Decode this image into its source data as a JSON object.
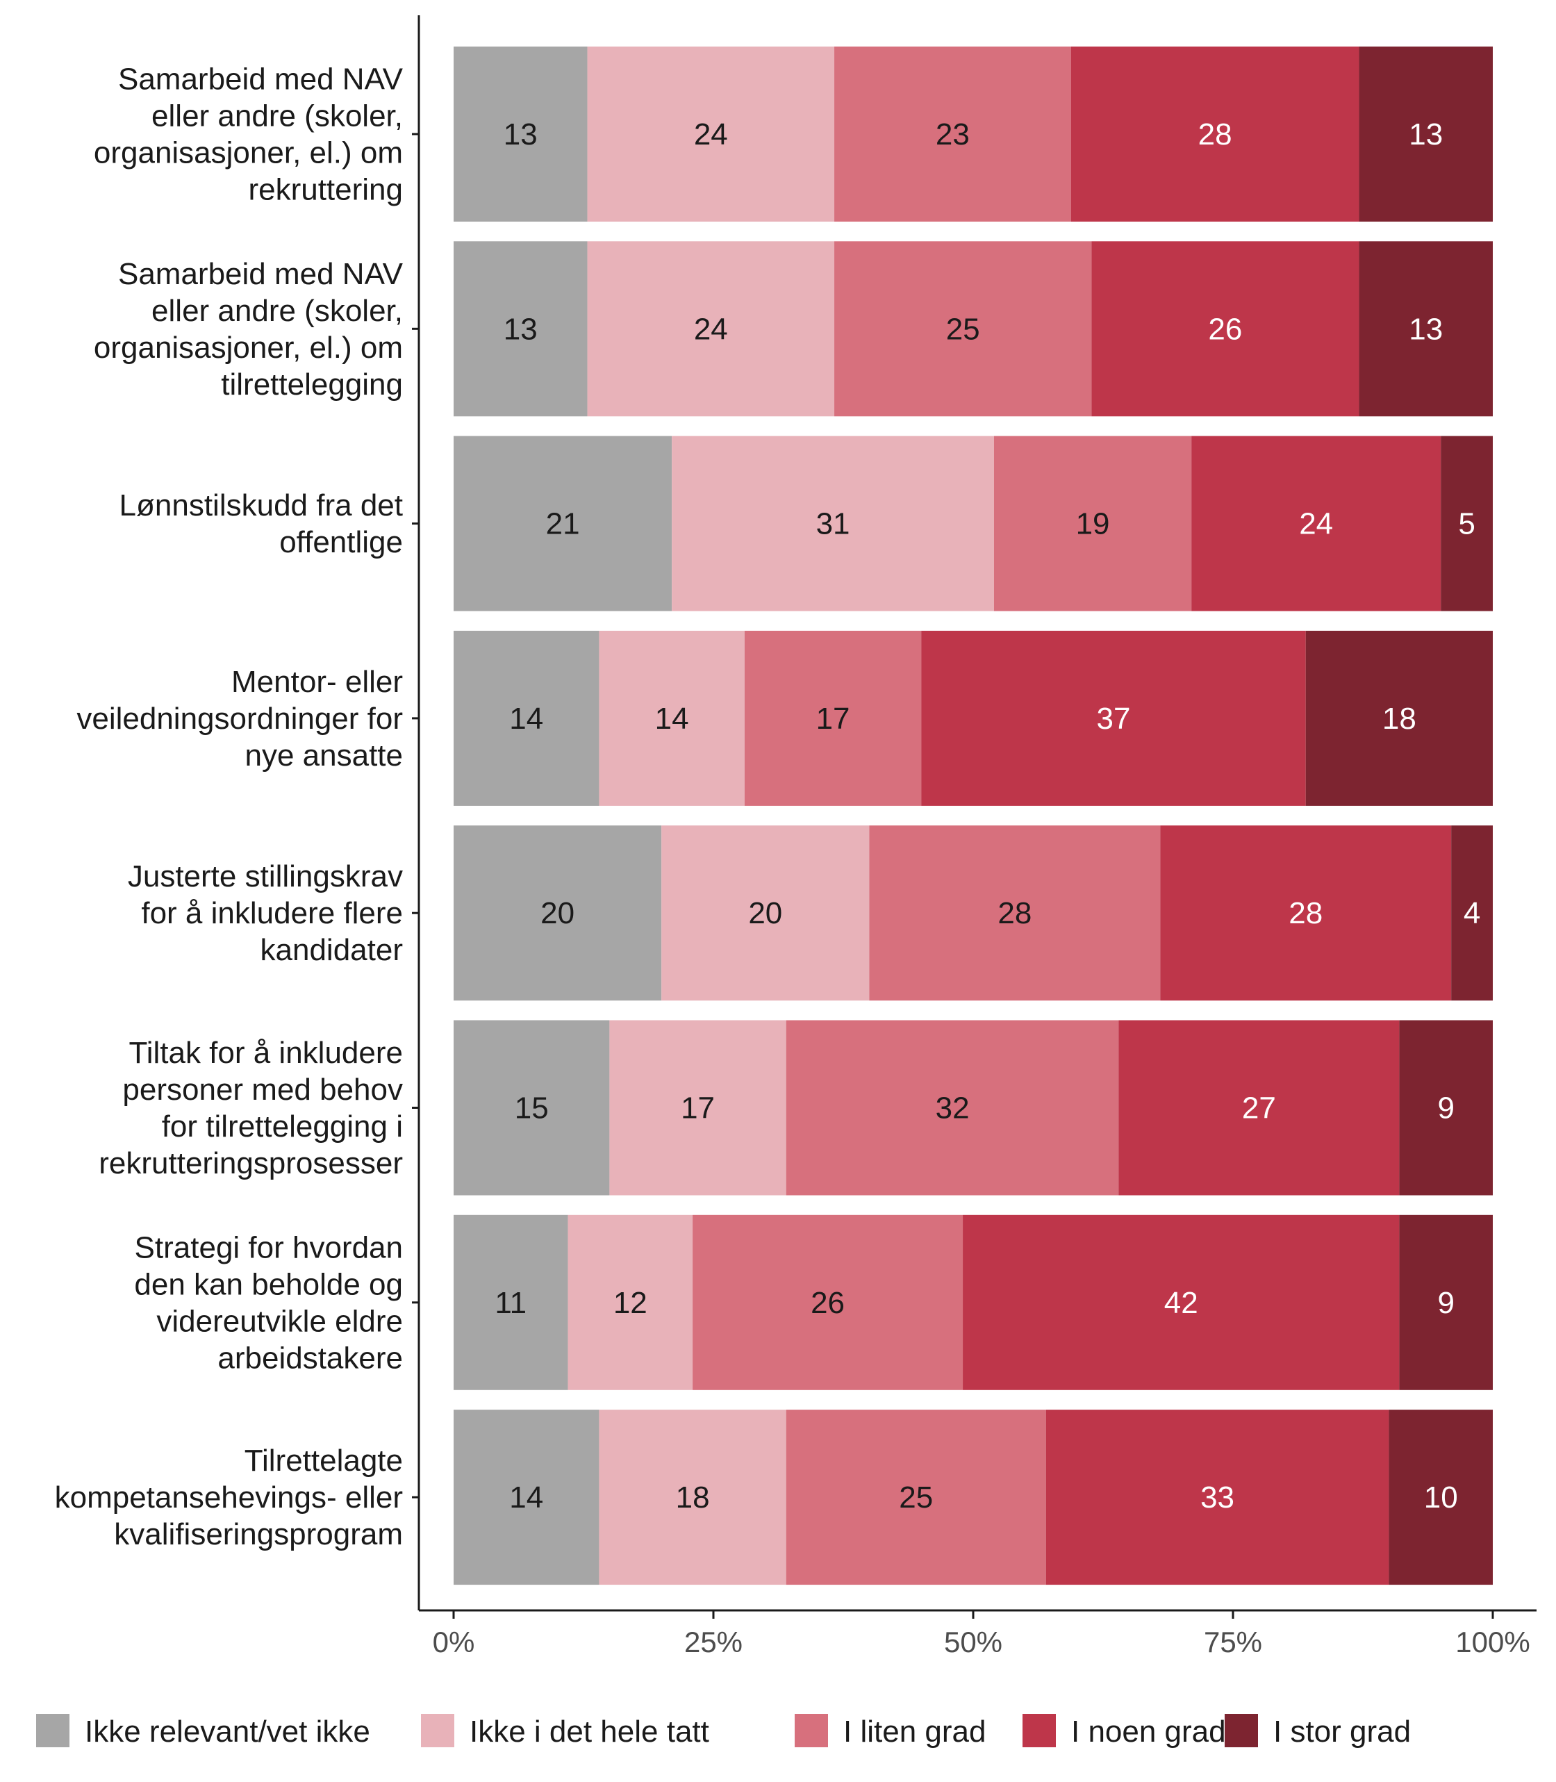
{
  "chart_data": {
    "type": "bar",
    "orientation": "horizontal",
    "stacked": true,
    "normalized": true,
    "categories": [
      [
        "Samarbeid med NAV",
        "eller andre (skoler,",
        "organisasjoner, el.) om",
        "rekruttering"
      ],
      [
        "Samarbeid med NAV",
        "eller andre (skoler,",
        "organisasjoner, el.) om",
        "tilrettelegging"
      ],
      [
        "Lønnstilskudd fra det",
        "offentlige"
      ],
      [
        "Mentor- eller",
        "veiledningsordninger for",
        "nye ansatte"
      ],
      [
        "Justerte stillingskrav",
        "for å inkludere flere",
        "kandidater"
      ],
      [
        "Tiltak for å inkludere",
        "personer med behov",
        "for tilrettelegging i",
        "rekrutteringsprosesser"
      ],
      [
        "Strategi for hvordan",
        "den kan beholde og",
        "videreutvikle eldre",
        "arbeidstakere"
      ],
      [
        "Tilrettelagte",
        "kompetansehevings- eller",
        "kvalifiseringsprogram"
      ]
    ],
    "series": [
      {
        "name": "Ikke relevant/vet ikke",
        "color": "#a6a6a6",
        "label_color": "#1a1a1a",
        "values": [
          13,
          13,
          21,
          14,
          20,
          15,
          11,
          14
        ]
      },
      {
        "name": "Ikke i det hele tatt",
        "color": "#e8b2b9",
        "label_color": "#1a1a1a",
        "values": [
          24,
          24,
          31,
          14,
          20,
          17,
          12,
          18
        ]
      },
      {
        "name": "I liten grad",
        "color": "#d7707d",
        "label_color": "#1a1a1a",
        "values": [
          23,
          25,
          19,
          17,
          28,
          32,
          26,
          25
        ]
      },
      {
        "name": "I noen grad",
        "color": "#be364a",
        "label_color": "#ffffff",
        "values": [
          28,
          26,
          24,
          37,
          28,
          27,
          42,
          33
        ]
      },
      {
        "name": "I stor grad",
        "color": "#7d2430",
        "label_color": "#ffffff",
        "values": [
          13,
          13,
          5,
          18,
          4,
          9,
          9,
          10
        ]
      }
    ],
    "xlim": [
      0,
      100
    ],
    "x_ticks": [
      "0%",
      "25%",
      "50%",
      "75%",
      "100%"
    ],
    "grid": false,
    "legend_position": "bottom",
    "title": "",
    "xlabel": "",
    "ylabel": ""
  }
}
